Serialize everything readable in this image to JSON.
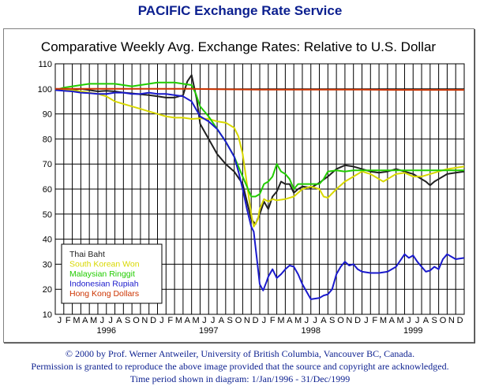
{
  "page": {
    "header": "PACIFIC Exchange Rate Service",
    "footer_line1": "© 2000 by Prof. Werner Antweiler, University of British Columbia, Vancouver BC, Canada.",
    "footer_line2": "Permission is granted to reproduce the above image provided that the source and copyright are acknowledged.",
    "footer_line3": "Time period shown in diagram: 1/Jan/1996 - 31/Dec/1999"
  },
  "colors": {
    "thai": "#202020",
    "korean": "#d8d800",
    "malaysian": "#22cc00",
    "indonesian": "#1a1acc",
    "hongkong": "#cc3300",
    "title": "#0b1f8f"
  },
  "chart_data": {
    "type": "line",
    "title": "Comparative Weekly Avg. Exchange Rates: Relative to U.S. Dollar",
    "xlabel": "",
    "ylabel": "",
    "ylim": [
      10,
      110
    ],
    "yticks": [
      10,
      20,
      30,
      40,
      50,
      60,
      70,
      80,
      90,
      100,
      110
    ],
    "xlim": [
      0,
      48
    ],
    "month_ticks": [
      "J",
      "F",
      "M",
      "A",
      "M",
      "J",
      "J",
      "A",
      "S",
      "O",
      "N",
      "D",
      "J",
      "F",
      "M",
      "A",
      "M",
      "J",
      "J",
      "A",
      "S",
      "O",
      "N",
      "D",
      "J",
      "F",
      "M",
      "A",
      "M",
      "J",
      "J",
      "A",
      "S",
      "O",
      "N",
      "D",
      "J",
      "F",
      "M",
      "A",
      "M",
      "J",
      "J",
      "A",
      "S",
      "O",
      "N",
      "D"
    ],
    "year_labels": [
      {
        "label": "1996",
        "month_index": 6
      },
      {
        "label": "1997",
        "month_index": 18
      },
      {
        "label": "1998",
        "month_index": 30
      },
      {
        "label": "1999",
        "month_index": 42
      }
    ],
    "legend_position": "bottom-left",
    "grid": true,
    "series": [
      {
        "name": "Thai Baht",
        "color_key": "thai",
        "points": [
          [
            0,
            99.5
          ],
          [
            1,
            99.8
          ],
          [
            2,
            99.6
          ],
          [
            3,
            100
          ],
          [
            4,
            99.5
          ],
          [
            5,
            99
          ],
          [
            6,
            99.2
          ],
          [
            7,
            99
          ],
          [
            8,
            98.5
          ],
          [
            9,
            98.2
          ],
          [
            10,
            97.8
          ],
          [
            11,
            97.5
          ],
          [
            12,
            97
          ],
          [
            13,
            96.5
          ],
          [
            14,
            96.5
          ],
          [
            15,
            97.5
          ],
          [
            15.5,
            103
          ],
          [
            16,
            105.5
          ],
          [
            16.6,
            96
          ],
          [
            17,
            86
          ],
          [
            18,
            80
          ],
          [
            19,
            74
          ],
          [
            20,
            70
          ],
          [
            21,
            67
          ],
          [
            22,
            62
          ],
          [
            22.5,
            55
          ],
          [
            23,
            48
          ],
          [
            23.5,
            46
          ],
          [
            24,
            50
          ],
          [
            24.5,
            55
          ],
          [
            25,
            52
          ],
          [
            25.5,
            57
          ],
          [
            26,
            59
          ],
          [
            26.5,
            63
          ],
          [
            27,
            62
          ],
          [
            27.5,
            62
          ],
          [
            28,
            58.5
          ],
          [
            28.5,
            60
          ],
          [
            29,
            61
          ],
          [
            30,
            60.5
          ],
          [
            31,
            62.5
          ],
          [
            32,
            65
          ],
          [
            33,
            68
          ],
          [
            34,
            69.5
          ],
          [
            35,
            69
          ],
          [
            36,
            68
          ],
          [
            37,
            67
          ],
          [
            38,
            66.5
          ],
          [
            39,
            67
          ],
          [
            40,
            68
          ],
          [
            41,
            67
          ],
          [
            42,
            66
          ],
          [
            43,
            64
          ],
          [
            43.5,
            63
          ],
          [
            44,
            61.5
          ],
          [
            44.5,
            63
          ],
          [
            45,
            64
          ],
          [
            46,
            66
          ],
          [
            47,
            66.5
          ],
          [
            48,
            67
          ]
        ]
      },
      {
        "name": "South Korean Won",
        "color_key": "korean",
        "points": [
          [
            0,
            99.5
          ],
          [
            1,
            99.6
          ],
          [
            2,
            99.4
          ],
          [
            3,
            99
          ],
          [
            4,
            98.5
          ],
          [
            5,
            98
          ],
          [
            6,
            97
          ],
          [
            7,
            95
          ],
          [
            8,
            94
          ],
          [
            9,
            93
          ],
          [
            10,
            92
          ],
          [
            11,
            91
          ],
          [
            12,
            90
          ],
          [
            13,
            89
          ],
          [
            14,
            88.5
          ],
          [
            15,
            88.5
          ],
          [
            16,
            88
          ],
          [
            17,
            88.2
          ],
          [
            18,
            88
          ],
          [
            19,
            87
          ],
          [
            20,
            86.5
          ],
          [
            21,
            84.5
          ],
          [
            21.5,
            81
          ],
          [
            22,
            74
          ],
          [
            22.5,
            62
          ],
          [
            23,
            50
          ],
          [
            23.3,
            45
          ],
          [
            23.8,
            48
          ],
          [
            24,
            52
          ],
          [
            24.5,
            56
          ],
          [
            25,
            55
          ],
          [
            25.5,
            56
          ],
          [
            26,
            55.5
          ],
          [
            27,
            56
          ],
          [
            28,
            57
          ],
          [
            29,
            60
          ],
          [
            30,
            61
          ],
          [
            31,
            60
          ],
          [
            31.5,
            57
          ],
          [
            32,
            56.5
          ],
          [
            33,
            60
          ],
          [
            34,
            63
          ],
          [
            35,
            65
          ],
          [
            36,
            67
          ],
          [
            37,
            66
          ],
          [
            38,
            64
          ],
          [
            38.5,
            63
          ],
          [
            39,
            64
          ],
          [
            40,
            66
          ],
          [
            41,
            66.5
          ],
          [
            42,
            65
          ],
          [
            43,
            65
          ],
          [
            44,
            66
          ],
          [
            45,
            67
          ],
          [
            46,
            68
          ],
          [
            47,
            68.5
          ],
          [
            48,
            69
          ]
        ]
      },
      {
        "name": "Malaysian Ringgit",
        "color_key": "malaysian",
        "points": [
          [
            0,
            99.5
          ],
          [
            1,
            100.5
          ],
          [
            2,
            101
          ],
          [
            3,
            101.5
          ],
          [
            4,
            102
          ],
          [
            5,
            102
          ],
          [
            6,
            102
          ],
          [
            7,
            102
          ],
          [
            8,
            101.5
          ],
          [
            9,
            101
          ],
          [
            10,
            101.5
          ],
          [
            11,
            102
          ],
          [
            12,
            102.5
          ],
          [
            13,
            102.5
          ],
          [
            14,
            102.5
          ],
          [
            15,
            102
          ],
          [
            16,
            101.5
          ],
          [
            16.5,
            98
          ],
          [
            17,
            93
          ],
          [
            18,
            89
          ],
          [
            19,
            84
          ],
          [
            20,
            79
          ],
          [
            21,
            73
          ],
          [
            22,
            65
          ],
          [
            23,
            57
          ],
          [
            23.5,
            57
          ],
          [
            24,
            58
          ],
          [
            24.5,
            62
          ],
          [
            25,
            63
          ],
          [
            25.5,
            65
          ],
          [
            26,
            70
          ],
          [
            26.5,
            67
          ],
          [
            27,
            66
          ],
          [
            27.5,
            64
          ],
          [
            28,
            60
          ],
          [
            28.5,
            62
          ],
          [
            29,
            62
          ],
          [
            30,
            62
          ],
          [
            31,
            62
          ],
          [
            31.5,
            64
          ],
          [
            32,
            67
          ],
          [
            33,
            67.5
          ],
          [
            34,
            67
          ],
          [
            35,
            67.5
          ],
          [
            36,
            67.5
          ],
          [
            37,
            67.5
          ],
          [
            38,
            67.5
          ],
          [
            39,
            67.5
          ],
          [
            40,
            67.5
          ],
          [
            41,
            67.5
          ],
          [
            42,
            67.5
          ],
          [
            43,
            67.5
          ],
          [
            44,
            67.5
          ],
          [
            45,
            67.5
          ],
          [
            46,
            67.5
          ],
          [
            47,
            67.5
          ],
          [
            48,
            67.5
          ]
        ]
      },
      {
        "name": "Indonesian Rupiah",
        "color_key": "indonesian",
        "points": [
          [
            0,
            99.5
          ],
          [
            1,
            99.2
          ],
          [
            2,
            99
          ],
          [
            3,
            98.5
          ],
          [
            4,
            98.3
          ],
          [
            5,
            98
          ],
          [
            6,
            98
          ],
          [
            7,
            98.5
          ],
          [
            8,
            98.5
          ],
          [
            9,
            98
          ],
          [
            10,
            98
          ],
          [
            11,
            98.5
          ],
          [
            12,
            98
          ],
          [
            13,
            98
          ],
          [
            14,
            97.5
          ],
          [
            15,
            97
          ],
          [
            16,
            95
          ],
          [
            17,
            89
          ],
          [
            18,
            87
          ],
          [
            19,
            84
          ],
          [
            20,
            79
          ],
          [
            21,
            73
          ],
          [
            21.5,
            67
          ],
          [
            22,
            60
          ],
          [
            22.5,
            52
          ],
          [
            23,
            45
          ],
          [
            23.3,
            43
          ],
          [
            23.7,
            31
          ],
          [
            24,
            22
          ],
          [
            24.4,
            19.5
          ],
          [
            24.8,
            23
          ],
          [
            25,
            25
          ],
          [
            25.5,
            28
          ],
          [
            26,
            24.5
          ],
          [
            26.5,
            26
          ],
          [
            27,
            28
          ],
          [
            27.5,
            29.5
          ],
          [
            28,
            29
          ],
          [
            28.5,
            26
          ],
          [
            29,
            22
          ],
          [
            29.5,
            19
          ],
          [
            30,
            16
          ],
          [
            31,
            16.5
          ],
          [
            31.5,
            17.5
          ],
          [
            32,
            18
          ],
          [
            32.5,
            20
          ],
          [
            33,
            26
          ],
          [
            33.5,
            29
          ],
          [
            34,
            31
          ],
          [
            34.5,
            29.5
          ],
          [
            35,
            30
          ],
          [
            35.5,
            28
          ],
          [
            36,
            27
          ],
          [
            37,
            26.5
          ],
          [
            38,
            26.5
          ],
          [
            39,
            27
          ],
          [
            40,
            29
          ],
          [
            41,
            34
          ],
          [
            41.5,
            32.5
          ],
          [
            42,
            33.5
          ],
          [
            42.5,
            31
          ],
          [
            43,
            29
          ],
          [
            43.5,
            27
          ],
          [
            44,
            27.5
          ],
          [
            44.5,
            29
          ],
          [
            45,
            28
          ],
          [
            45.5,
            32
          ],
          [
            46,
            34
          ],
          [
            46.5,
            33
          ],
          [
            47,
            32
          ],
          [
            48,
            32.5
          ]
        ]
      },
      {
        "name": "Hong Kong Dollars",
        "color_key": "hongkong",
        "points": [
          [
            0,
            100
          ],
          [
            4,
            100
          ],
          [
            8,
            100
          ],
          [
            12,
            100
          ],
          [
            16,
            100
          ],
          [
            20,
            99.8
          ],
          [
            24,
            99.7
          ],
          [
            28,
            99.7
          ],
          [
            32,
            99.7
          ],
          [
            36,
            99.7
          ],
          [
            40,
            99.6
          ],
          [
            44,
            99.6
          ],
          [
            48,
            99.6
          ]
        ]
      }
    ]
  }
}
